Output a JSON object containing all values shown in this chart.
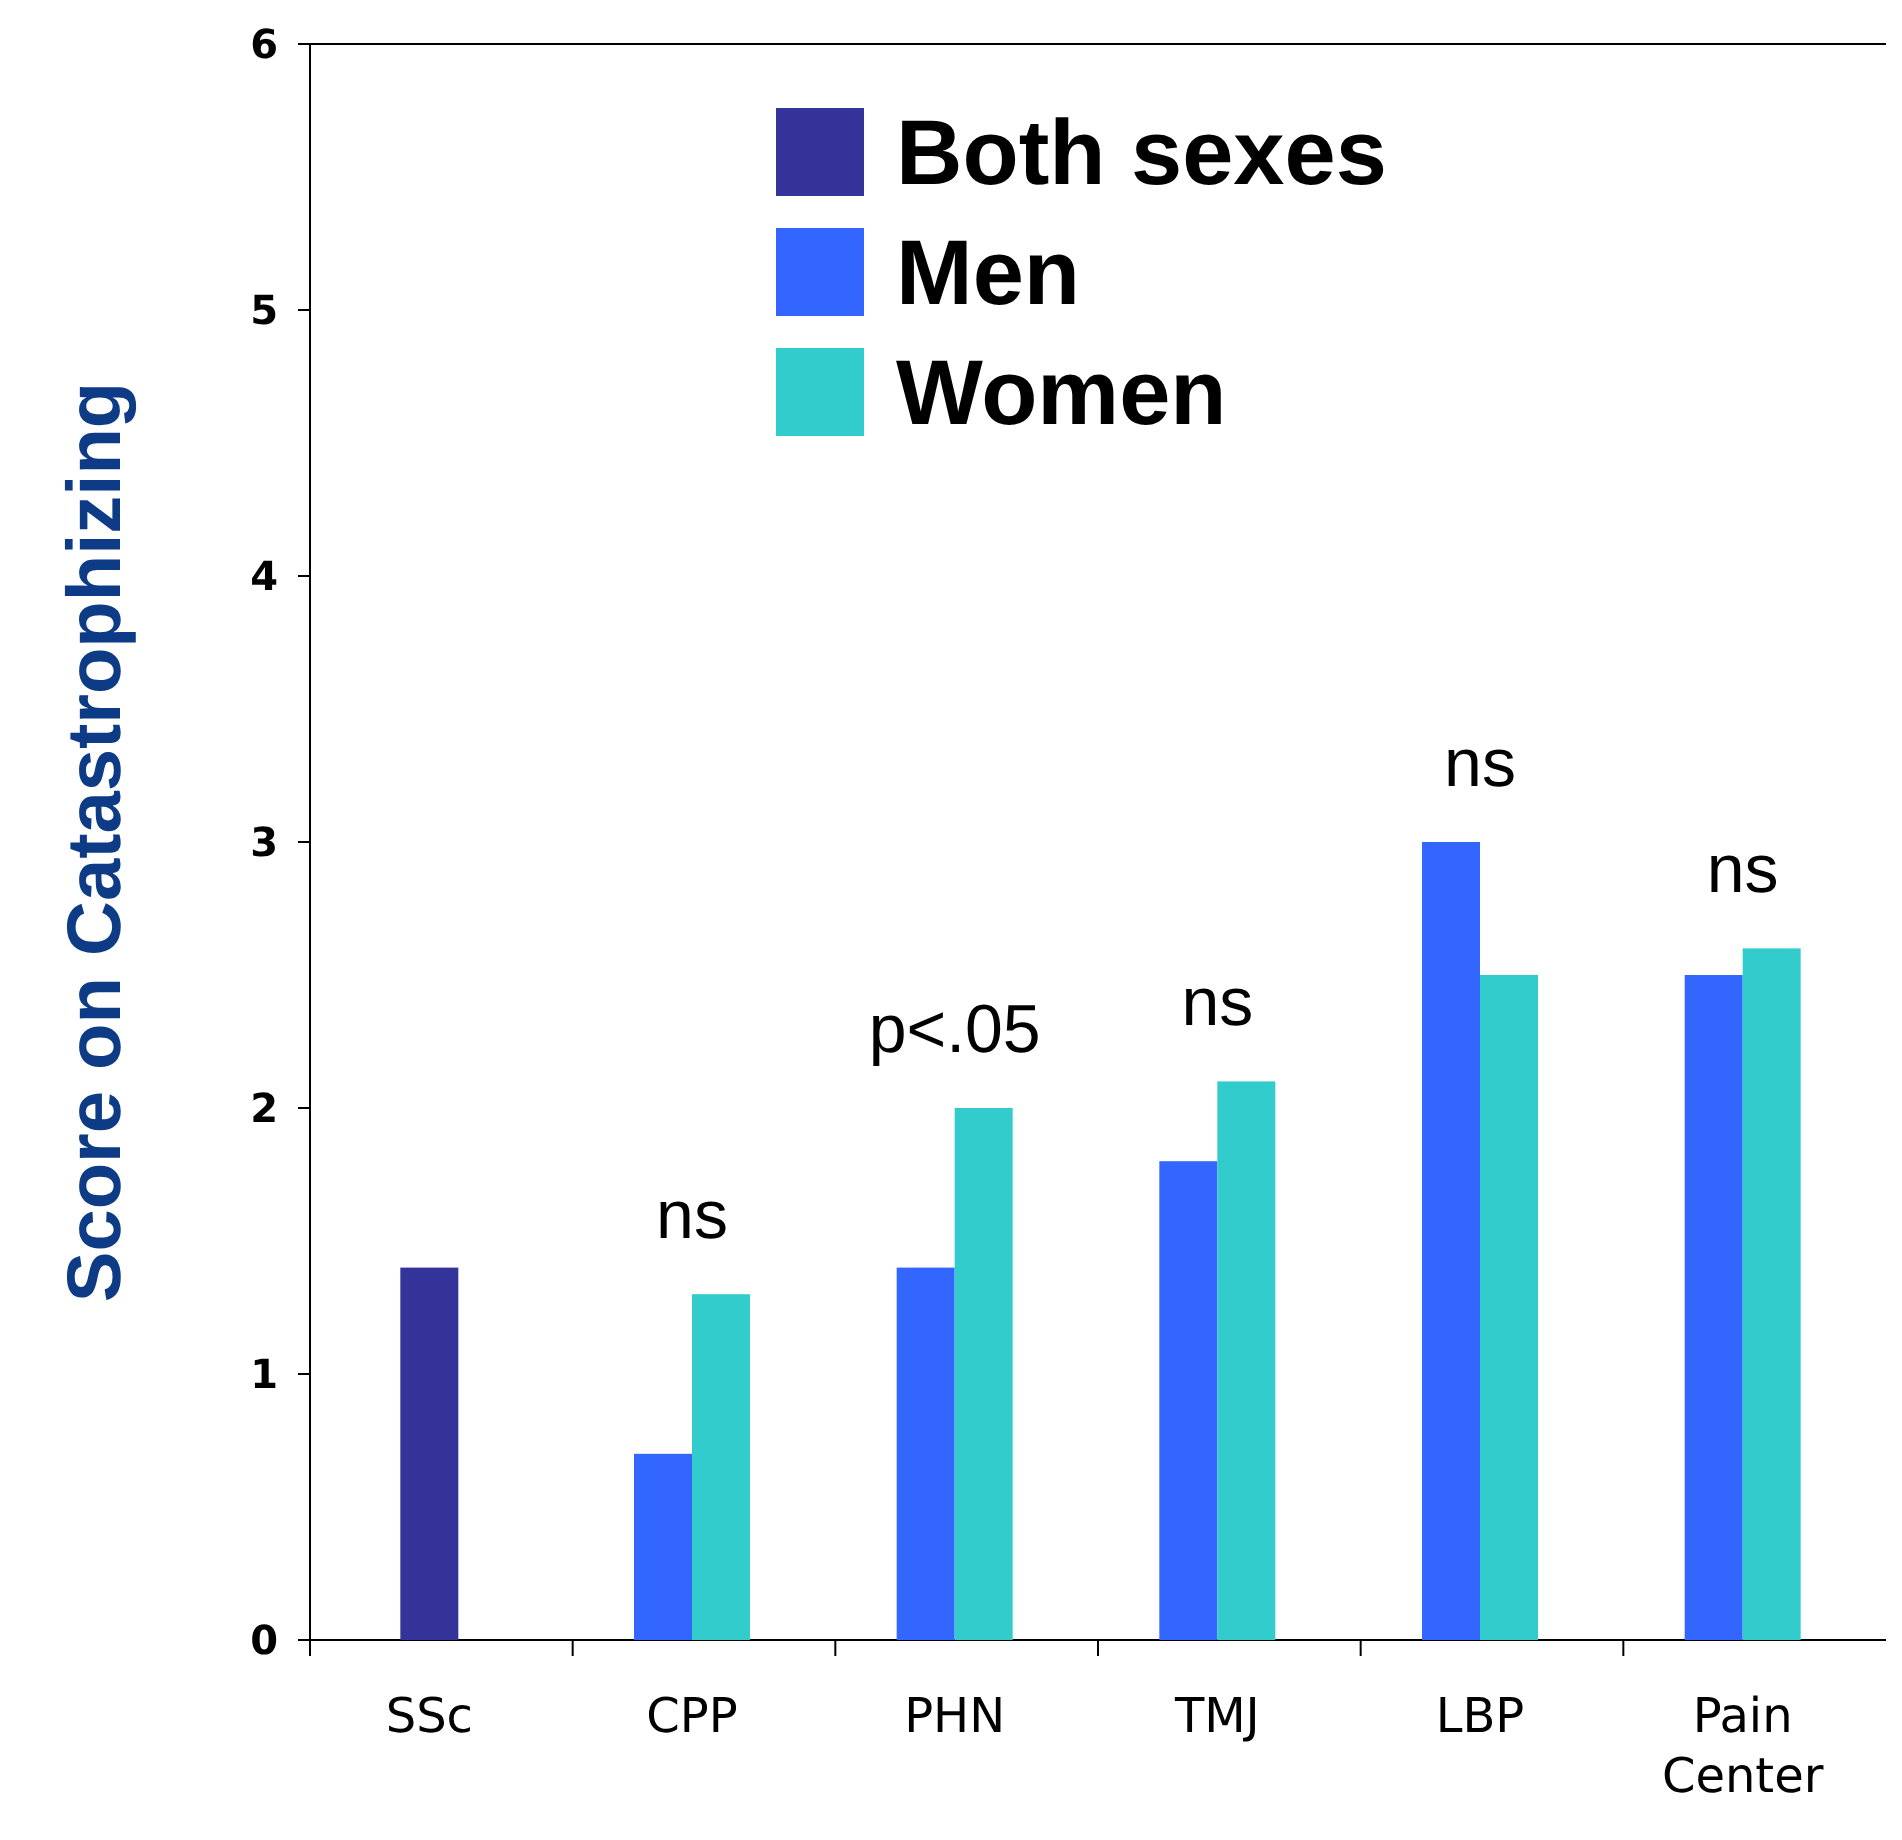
{
  "chart_data": {
    "type": "bar",
    "ylabel": "Score on Catastrophizing",
    "categories": [
      "SSc",
      "CPP",
      "PHN",
      "TMJ",
      "LBP",
      "Pain Center"
    ],
    "series": [
      {
        "name": "Both sexes",
        "color": "#333399",
        "values": [
          1.4,
          null,
          null,
          null,
          null,
          null
        ]
      },
      {
        "name": "Men",
        "color": "#3366ff",
        "values": [
          null,
          0.7,
          1.4,
          1.8,
          3.0,
          2.5
        ]
      },
      {
        "name": "Women",
        "color": "#33cccc",
        "values": [
          null,
          1.3,
          2.0,
          2.1,
          2.5,
          2.6
        ]
      }
    ],
    "ylim": [
      0,
      6
    ],
    "yticks": [
      0,
      1,
      2,
      3,
      4,
      5,
      6
    ],
    "grid": false,
    "legend": "top",
    "annotations": [
      "ns",
      "p<.05",
      "ns",
      "ns",
      "ns"
    ]
  }
}
